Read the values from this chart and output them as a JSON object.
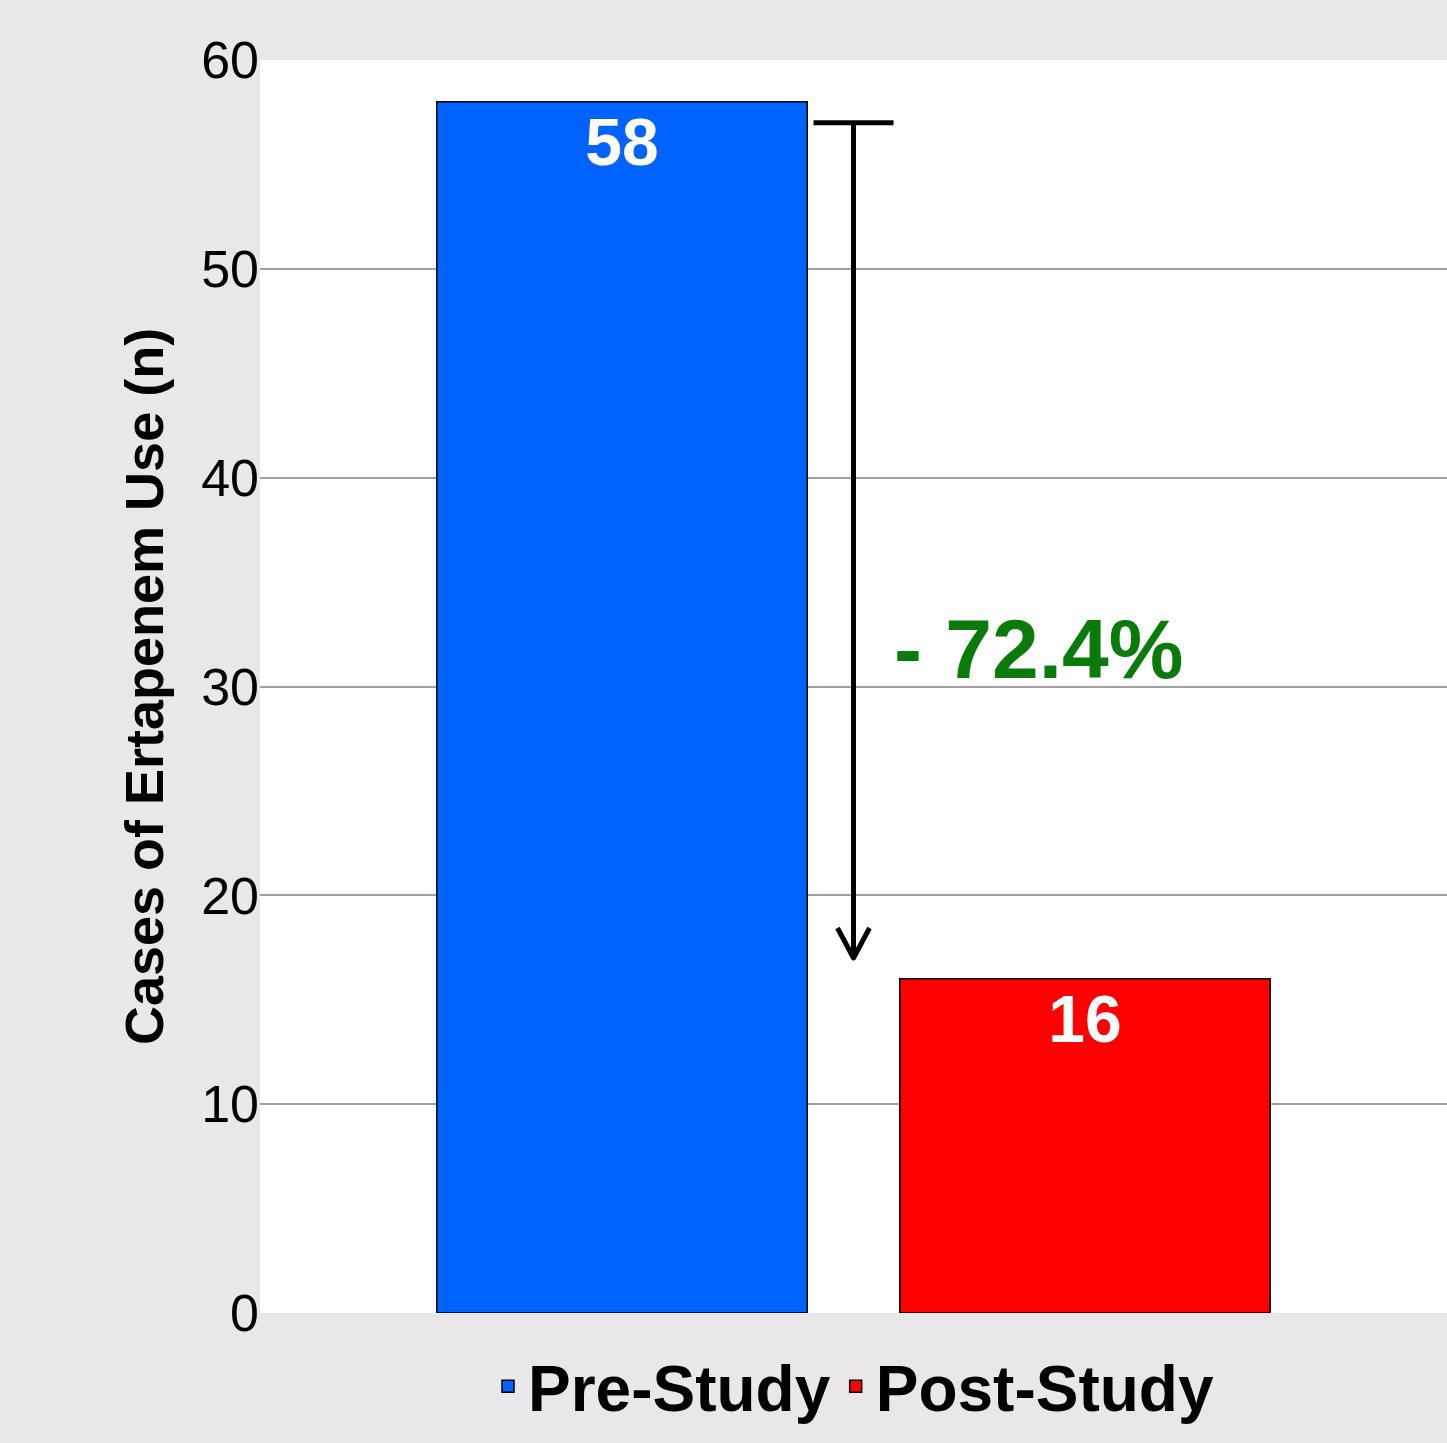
{
  "chart_data": {
    "type": "bar",
    "ylabel": "Cases of Ertapenem Use (n)",
    "categories": [
      null
    ],
    "series": [
      {
        "name": "Pre-Study",
        "color": "#0062ff",
        "values": [
          58
        ]
      },
      {
        "name": "Post-Study",
        "color": "#ff0000",
        "values": [
          16
        ]
      }
    ],
    "ylim": [
      0,
      60
    ],
    "yticks": [
      0,
      10,
      20,
      30,
      40,
      50,
      60
    ],
    "grid": "y",
    "legend": "bottom",
    "data_labels": true,
    "tick_labels": "y",
    "annotations": [
      "- 72.4%"
    ]
  }
}
